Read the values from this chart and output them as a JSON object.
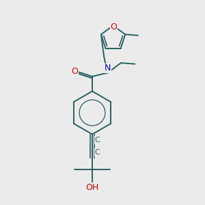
{
  "bg_color": "#ebebeb",
  "bond_color": "#2a6060",
  "bond_width": 1.4,
  "N_color": "#0000cc",
  "O_color": "#cc0000",
  "label_fontsize": 8.5,
  "figsize": [
    3.0,
    3.0
  ],
  "dpi": 100,
  "xlim": [
    0,
    10
  ],
  "ylim": [
    0,
    10
  ]
}
